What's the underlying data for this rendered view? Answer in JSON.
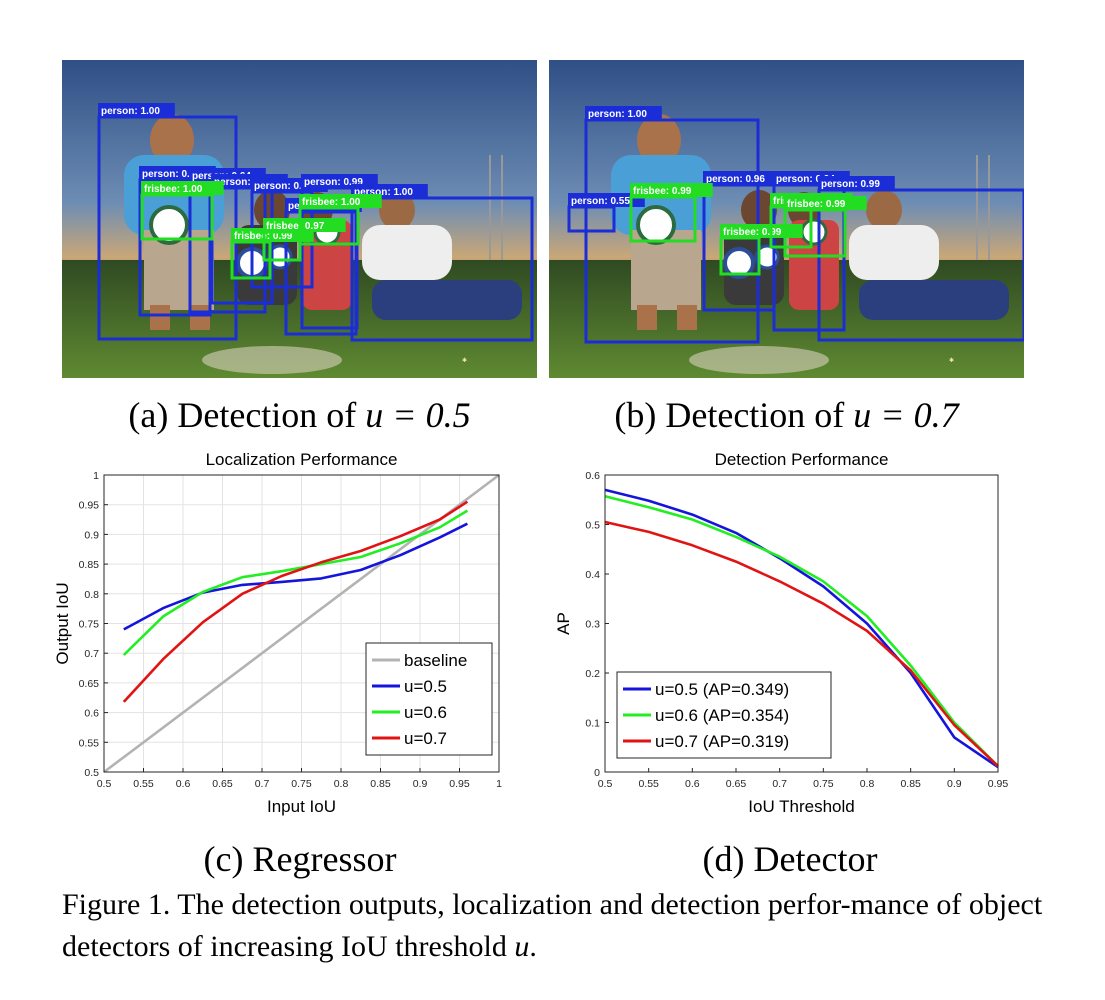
{
  "panels": {
    "a": {
      "caption_prefix": "(a) Detection of ",
      "caption_math": "u = 0.5",
      "boxes": [
        {
          "label": "person: 1.00",
          "color": "#1a2dd6"
        },
        {
          "label": "person: 0.56",
          "color": "#1a2dd6"
        },
        {
          "label": "person: 0.64",
          "color": "#1a2dd6"
        },
        {
          "label": "person: 0.70",
          "color": "#1a2dd6"
        },
        {
          "label": "person: 0.82",
          "color": "#1a2dd6"
        },
        {
          "label": "person: 0.99",
          "color": "#1a2dd6"
        },
        {
          "label": "person: 1.00",
          "color": "#1a2dd6"
        },
        {
          "label": "person: 0.63",
          "color": "#1a2dd6"
        },
        {
          "label": "frisbee: 1.00",
          "color": "#22dd22"
        },
        {
          "label": "frisbee: 0.99",
          "color": "#22dd22"
        },
        {
          "label": "frisbee: 0.97",
          "color": "#22dd22"
        },
        {
          "label": "frisbee: 1.00",
          "color": "#22dd22"
        }
      ]
    },
    "b": {
      "caption_prefix": "(b) Detection of ",
      "caption_math": "u = 0.7",
      "boxes": [
        {
          "label": "person: 1.00",
          "color": "#1a2dd6"
        },
        {
          "label": "person: 0.55",
          "color": "#1a2dd6"
        },
        {
          "label": "person: 0.96",
          "color": "#1a2dd6"
        },
        {
          "label": "person: 0.94",
          "color": "#1a2dd6"
        },
        {
          "label": "person: 0.99",
          "color": "#1a2dd6"
        },
        {
          "label": "frisbee: 0.99",
          "color": "#22dd22"
        },
        {
          "label": "frisbee: 0.99",
          "color": "#22dd22"
        },
        {
          "label": "frisbee: 0.93",
          "color": "#22dd22"
        },
        {
          "label": "frisbee: 0.99",
          "color": "#22dd22"
        }
      ]
    },
    "c": {
      "caption": "(c) Regressor"
    },
    "d": {
      "caption": "(d) Detector"
    }
  },
  "figure_caption": {
    "prefix": "Figure 1. The detection outputs, localization and detection perfor-mance of object detectors of increasing IoU threshold ",
    "math": "u",
    "suffix": "."
  },
  "colors": {
    "blue": "#1414dc",
    "green": "#22ee22",
    "red": "#e11414",
    "gray": "#b3b3b3"
  },
  "chart_data": [
    {
      "type": "line",
      "title": "Localization Performance",
      "xlabel": "Input IoU",
      "ylabel": "Output IoU",
      "xlim": [
        0.5,
        1
      ],
      "ylim": [
        0.5,
        1
      ],
      "xticks": [
        "0.5",
        "0.55",
        "0.6",
        "0.65",
        "0.7",
        "0.75",
        "0.8",
        "0.85",
        "0.9",
        "0.95",
        "1"
      ],
      "yticks": [
        "0.5",
        "0.55",
        "0.6",
        "0.65",
        "0.7",
        "0.75",
        "0.8",
        "0.85",
        "0.9",
        "0.95",
        "1"
      ],
      "grid": true,
      "legend_position": "bottom-right",
      "series": [
        {
          "name": "baseline",
          "color": "#b3b3b3",
          "x": [
            0.5,
            1.0
          ],
          "y": [
            0.5,
            1.0
          ]
        },
        {
          "name": "u=0.5",
          "color": "#1414dc",
          "x": [
            0.525,
            0.575,
            0.625,
            0.675,
            0.725,
            0.775,
            0.825,
            0.875,
            0.925,
            0.96
          ],
          "y": [
            0.74,
            0.776,
            0.802,
            0.815,
            0.82,
            0.826,
            0.84,
            0.865,
            0.895,
            0.918
          ]
        },
        {
          "name": "u=0.6",
          "color": "#22ee22",
          "x": [
            0.525,
            0.575,
            0.625,
            0.675,
            0.725,
            0.775,
            0.825,
            0.875,
            0.925,
            0.96
          ],
          "y": [
            0.697,
            0.762,
            0.803,
            0.828,
            0.838,
            0.85,
            0.862,
            0.885,
            0.912,
            0.94
          ]
        },
        {
          "name": "u=0.7",
          "color": "#e11414",
          "x": [
            0.525,
            0.575,
            0.625,
            0.675,
            0.725,
            0.775,
            0.825,
            0.875,
            0.925,
            0.96
          ],
          "y": [
            0.618,
            0.69,
            0.752,
            0.8,
            0.83,
            0.853,
            0.872,
            0.897,
            0.925,
            0.955
          ]
        }
      ]
    },
    {
      "type": "line",
      "title": "Detection Performance",
      "xlabel": "IoU Threshold",
      "ylabel": "AP",
      "xlim": [
        0.5,
        0.95
      ],
      "ylim": [
        0,
        0.6
      ],
      "xticks": [
        "0.5",
        "0.55",
        "0.6",
        "0.65",
        "0.7",
        "0.75",
        "0.8",
        "0.85",
        "0.9",
        "0.95"
      ],
      "yticks": [
        "0",
        "0.1",
        "0.2",
        "0.3",
        "0.4",
        "0.5",
        "0.6"
      ],
      "grid": false,
      "legend_position": "bottom-left",
      "series": [
        {
          "name": "u=0.5 (AP=0.349)",
          "color": "#1414dc",
          "x": [
            0.5,
            0.55,
            0.6,
            0.65,
            0.7,
            0.75,
            0.8,
            0.85,
            0.9,
            0.95
          ],
          "y": [
            0.57,
            0.548,
            0.52,
            0.483,
            0.432,
            0.375,
            0.3,
            0.2,
            0.07,
            0.01
          ]
        },
        {
          "name": "u=0.6 (AP=0.354)",
          "color": "#22ee22",
          "x": [
            0.5,
            0.55,
            0.6,
            0.65,
            0.7,
            0.75,
            0.8,
            0.85,
            0.9,
            0.95
          ],
          "y": [
            0.557,
            0.535,
            0.51,
            0.475,
            0.435,
            0.385,
            0.315,
            0.215,
            0.1,
            0.012
          ]
        },
        {
          "name": "u=0.7 (AP=0.319)",
          "color": "#e11414",
          "x": [
            0.5,
            0.55,
            0.6,
            0.65,
            0.7,
            0.75,
            0.8,
            0.85,
            0.9,
            0.95
          ],
          "y": [
            0.505,
            0.485,
            0.458,
            0.425,
            0.385,
            0.34,
            0.285,
            0.205,
            0.095,
            0.012
          ]
        }
      ]
    }
  ]
}
